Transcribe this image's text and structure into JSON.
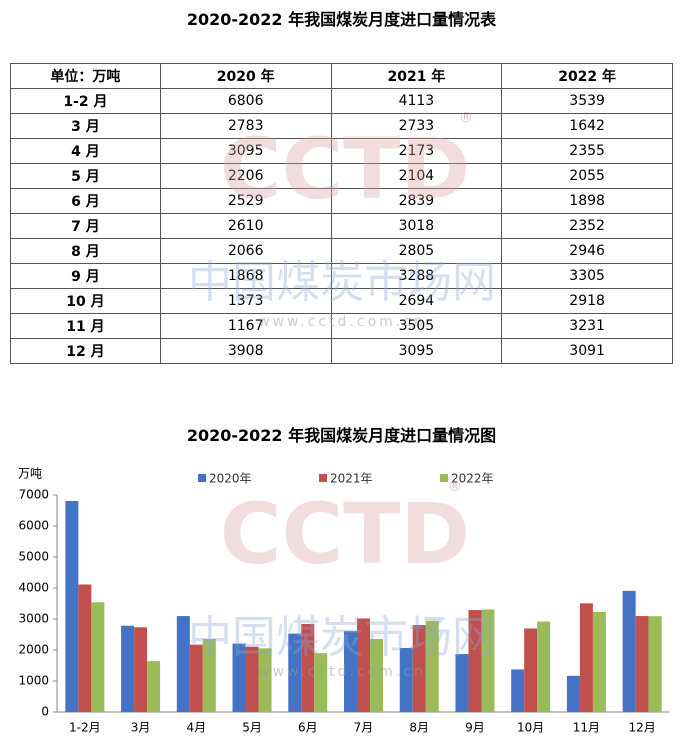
{
  "table": {
    "title": "2020-2022 年我国煤炭月度进口量情况表",
    "header": [
      "单位：万吨",
      "2020 年",
      "2021 年",
      "2022 年"
    ],
    "rows": [
      [
        "1-2 月",
        "6806",
        "4113",
        "3539"
      ],
      [
        "3 月",
        "2783",
        "2733",
        "1642"
      ],
      [
        "4 月",
        "3095",
        "2173",
        "2355"
      ],
      [
        "5 月",
        "2206",
        "2104",
        "2055"
      ],
      [
        "6 月",
        "2529",
        "2839",
        "1898"
      ],
      [
        "7 月",
        "2610",
        "3018",
        "2352"
      ],
      [
        "8 月",
        "2066",
        "2805",
        "2946"
      ],
      [
        "9 月",
        "1868",
        "3288",
        "3305"
      ],
      [
        "10 月",
        "1373",
        "2694",
        "2918"
      ],
      [
        "11 月",
        "1167",
        "3505",
        "3231"
      ],
      [
        "12 月",
        "3908",
        "3095",
        "3091"
      ]
    ]
  },
  "watermark": {
    "logo": "CCTD",
    "name": "中国煤炭市场网",
    "url": "www.cctd.com.cn",
    "mark": "®"
  },
  "chart_data": {
    "type": "bar",
    "title": "2020-2022 年我国煤炭月度进口量情况图",
    "y_label": "万吨",
    "categories": [
      "1-2月",
      "3月",
      "4月",
      "5月",
      "6月",
      "7月",
      "8月",
      "9月",
      "10月",
      "11月",
      "12月"
    ],
    "series": [
      {
        "name": "2020年",
        "color": "#4472c4",
        "values": [
          6806,
          2783,
          3095,
          2206,
          2529,
          2610,
          2066,
          1868,
          1373,
          1167,
          3908
        ]
      },
      {
        "name": "2021年",
        "color": "#c0504d",
        "values": [
          4113,
          2733,
          2173,
          2104,
          2839,
          3018,
          2805,
          3288,
          2694,
          3505,
          3095
        ]
      },
      {
        "name": "2022年",
        "color": "#9bbb59",
        "values": [
          3539,
          1642,
          2355,
          2055,
          1898,
          2352,
          2946,
          3305,
          2918,
          3231,
          3091
        ]
      }
    ],
    "ylim": [
      0,
      7000
    ],
    "yticks": [
      0,
      1000,
      2000,
      3000,
      4000,
      5000,
      6000,
      7000
    ],
    "grid": false,
    "legend": "top"
  }
}
